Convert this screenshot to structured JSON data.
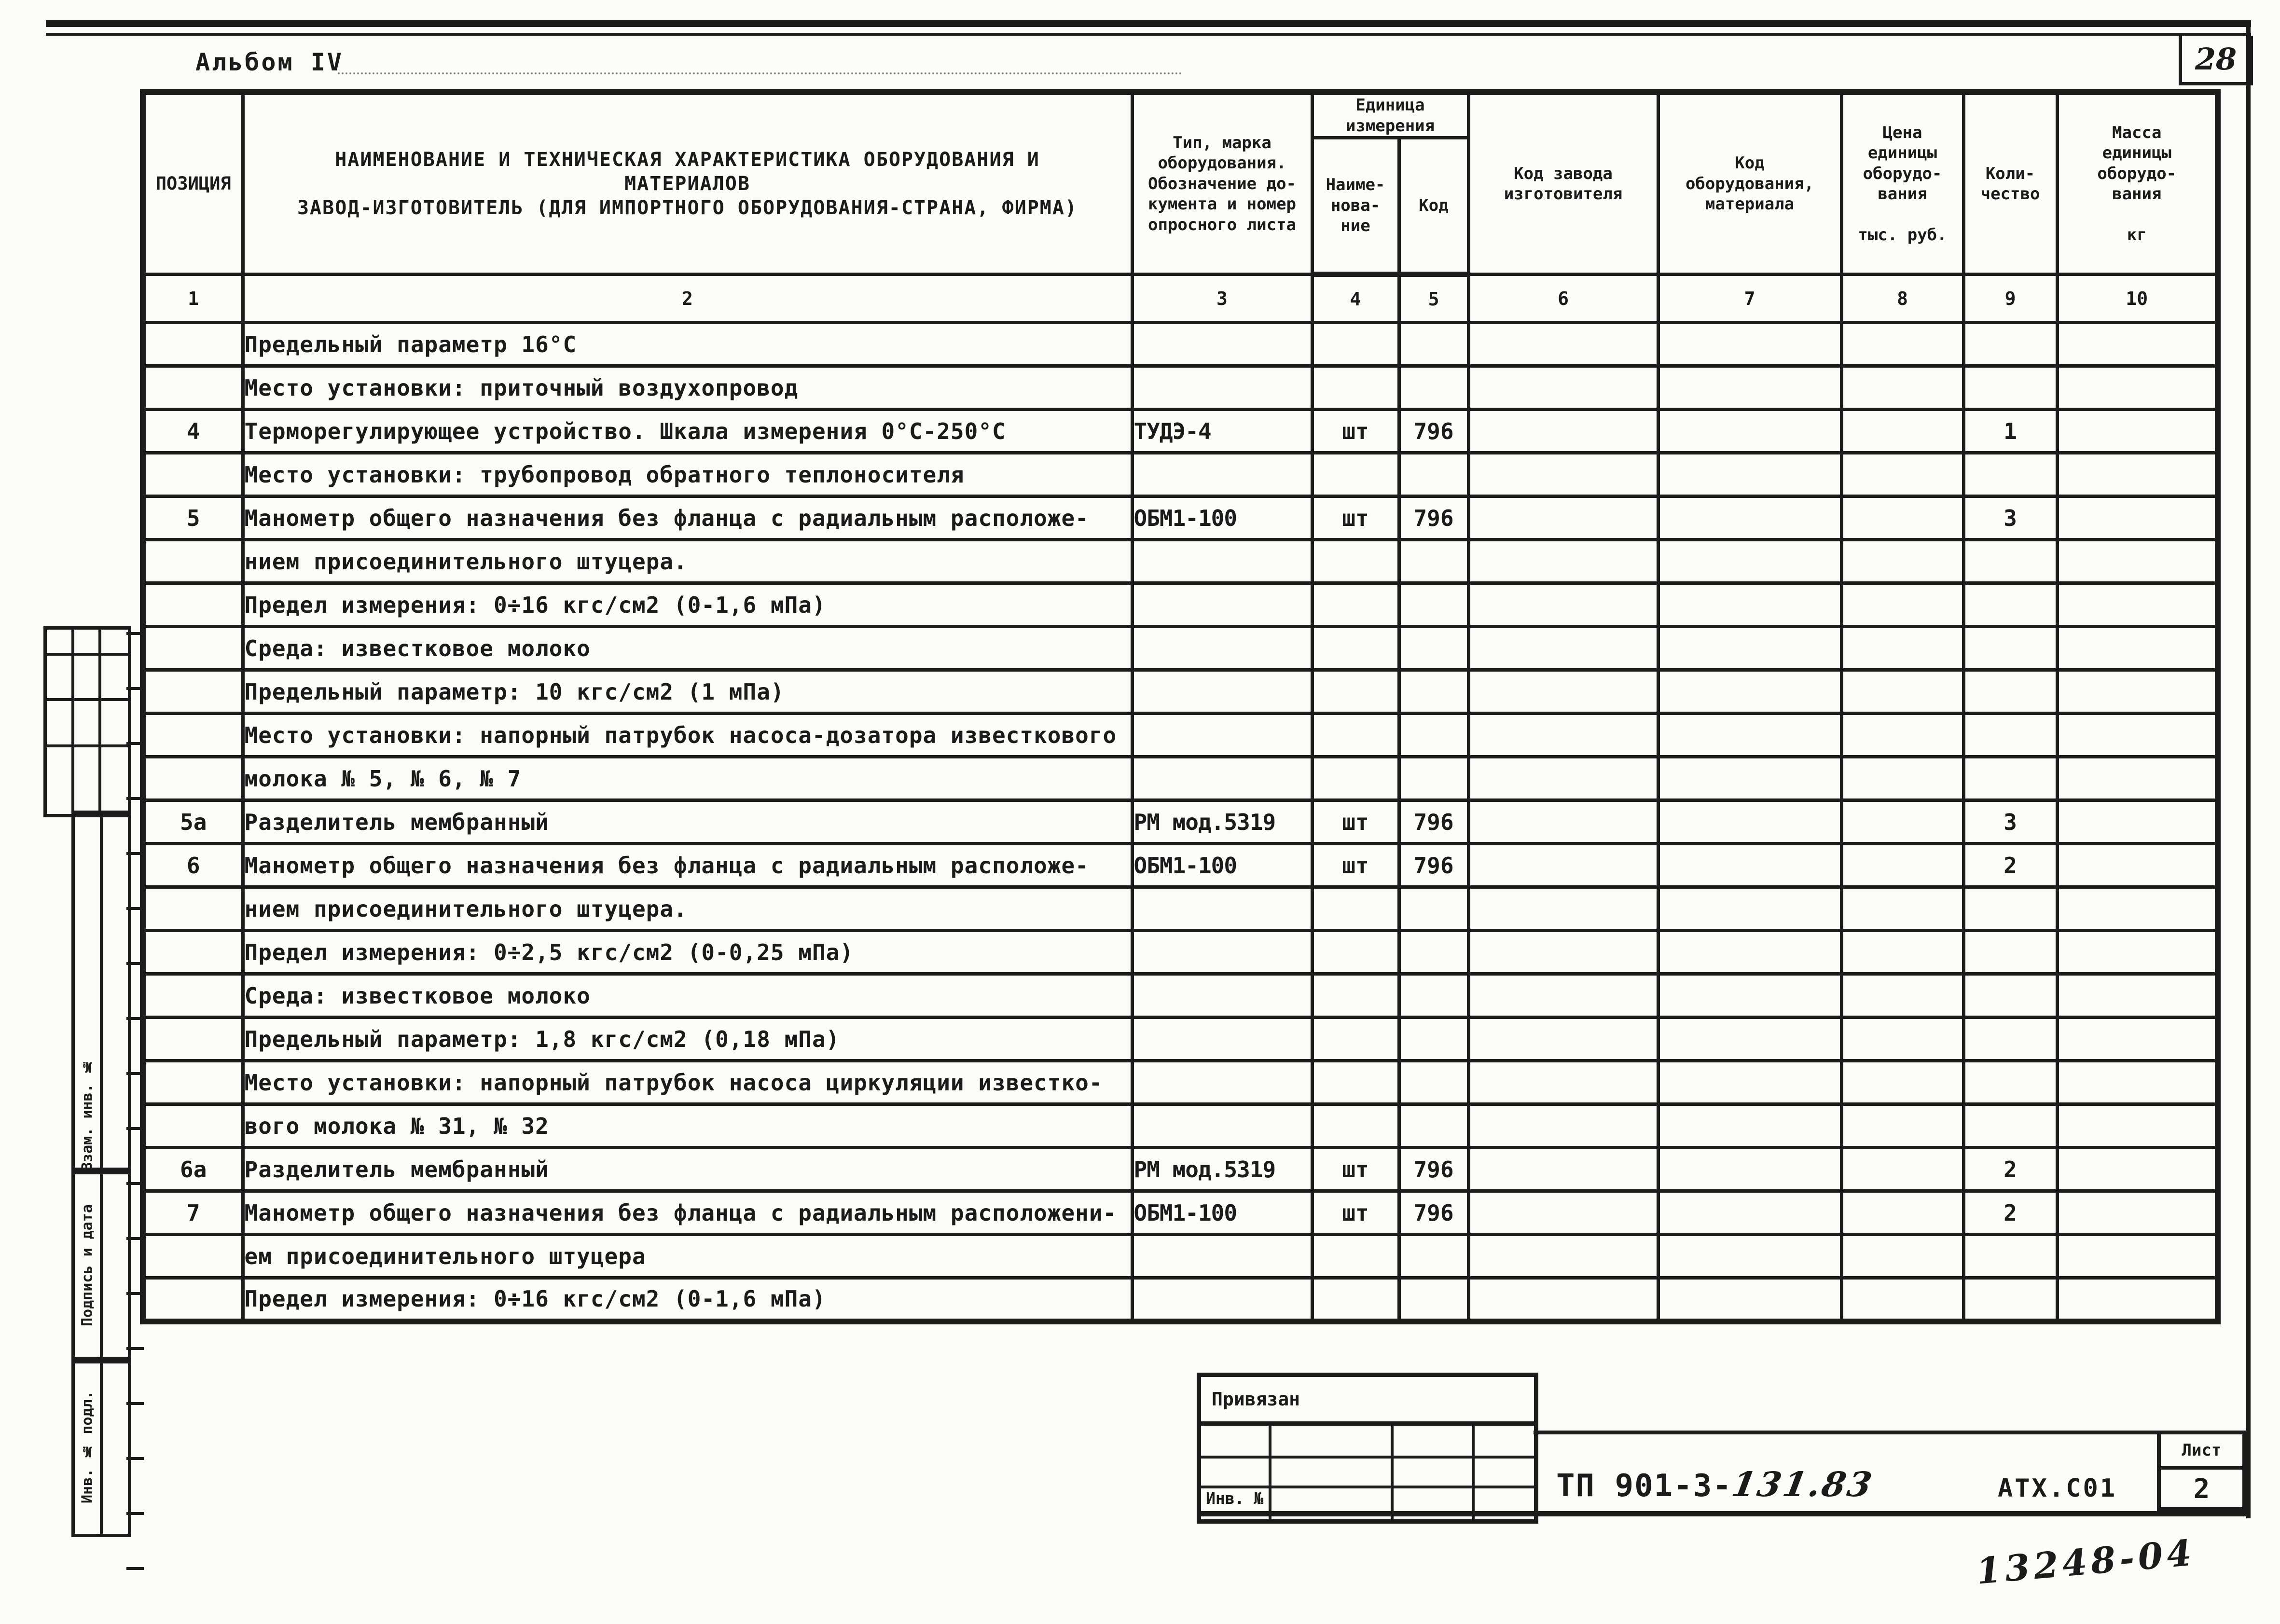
{
  "page": {
    "album_label": "Альбом IV",
    "page_number": "28",
    "handwritten_note": "13248-04"
  },
  "frame": {
    "margin_labels": [
      "Взам. инв. №",
      "Подпись и дата",
      "Инв. № подл."
    ]
  },
  "title_block": {
    "stamp_title": "Привязан",
    "inv_label": "Инв. №",
    "doc_code_typed": "ТП 901-3-",
    "doc_code_hand": "131.83",
    "org_code": "АТХ.С01",
    "sheet_label": "Лист",
    "sheet_number": "2"
  },
  "table": {
    "headers": {
      "position": "ПОЗИЦИЯ",
      "name": "НАИМЕНОВАНИЕ И ТЕХНИЧЕСКАЯ ХАРАКТЕРИСТИКА ОБОРУДОВАНИЯ И\nМАТЕРИАЛОВ\nЗАВОД-ИЗГОТОВИТЕЛЬ (ДЛЯ ИМПОРТНОГО ОБОРУДОВАНИЯ-СТРАНА, ФИРМА)",
      "type": "Тип, марка\nоборудования.\nОбозначение до-\nкумента и номер\nопросного листа",
      "unit_group": "Единица\nизмерения",
      "unit_name": "Наиме-\nнова-\nние",
      "unit_code": "Код",
      "factory_code": "Код завода\nизготовителя",
      "equipment_code": "Код\nоборудования,\nматериала",
      "price": "Цена\nединицы\nоборудо-\nвания\n\nтыс. руб.",
      "quantity": "Коли-\nчество",
      "mass": "Масса\nединицы\nоборудо-\nвания\n\nкг"
    },
    "column_numbers": [
      "1",
      "2",
      "3",
      "4",
      "5",
      "6",
      "7",
      "8",
      "9",
      "10"
    ],
    "rows": [
      {
        "pos": "",
        "name": "Предельный параметр 16°С",
        "type": "",
        "unit": "",
        "code": "",
        "qty": ""
      },
      {
        "pos": "",
        "name": "Место установки: приточный воздухопровод",
        "type": "",
        "unit": "",
        "code": "",
        "qty": ""
      },
      {
        "pos": "4",
        "name": "Терморегулирующее устройство. Шкала измерения 0°С-250°С",
        "type": "ТУДЭ-4",
        "unit": "шт",
        "code": "796",
        "qty": "1"
      },
      {
        "pos": "",
        "name": "Место установки: трубопровод обратного теплоносителя",
        "type": "",
        "unit": "",
        "code": "",
        "qty": ""
      },
      {
        "pos": "5",
        "name": "Манометр общего назначения без фланца с радиальным расположе-",
        "type": "ОБМ1-100",
        "unit": "шт",
        "code": "796",
        "qty": "3"
      },
      {
        "pos": "",
        "name": "нием присоединительного штуцера.",
        "type": "",
        "unit": "",
        "code": "",
        "qty": ""
      },
      {
        "pos": "",
        "name": "Предел измерения: 0÷16 кгс/см2 (0-1,6 мПа)",
        "type": "",
        "unit": "",
        "code": "",
        "qty": ""
      },
      {
        "pos": "",
        "name": "Среда: известковое молоко",
        "type": "",
        "unit": "",
        "code": "",
        "qty": ""
      },
      {
        "pos": "",
        "name": "Предельный параметр: 10 кгс/см2 (1 мПа)",
        "type": "",
        "unit": "",
        "code": "",
        "qty": ""
      },
      {
        "pos": "",
        "name": "Место установки: напорный патрубок насоса-дозатора известкового",
        "type": "",
        "unit": "",
        "code": "",
        "qty": ""
      },
      {
        "pos": "",
        "name": "молока № 5, № 6, № 7",
        "type": "",
        "unit": "",
        "code": "",
        "qty": ""
      },
      {
        "pos": "5а",
        "name": "Разделитель мембранный",
        "type": "РМ мод.5319",
        "unit": "шт",
        "code": "796",
        "qty": "3"
      },
      {
        "pos": "6",
        "name": "Манометр общего назначения без фланца с радиальным расположе-",
        "type": "ОБМ1-100",
        "unit": "шт",
        "code": "796",
        "qty": "2"
      },
      {
        "pos": "",
        "name": "нием присоединительного штуцера.",
        "type": "",
        "unit": "",
        "code": "",
        "qty": ""
      },
      {
        "pos": "",
        "name": "Предел измерения: 0÷2,5 кгс/см2 (0-0,25 мПа)",
        "type": "",
        "unit": "",
        "code": "",
        "qty": ""
      },
      {
        "pos": "",
        "name": "Среда: известковое молоко",
        "type": "",
        "unit": "",
        "code": "",
        "qty": ""
      },
      {
        "pos": "",
        "name": "Предельный параметр: 1,8 кгс/см2 (0,18 мПа)",
        "type": "",
        "unit": "",
        "code": "",
        "qty": ""
      },
      {
        "pos": "",
        "name": "Место установки: напорный патрубок насоса циркуляции известко-",
        "type": "",
        "unit": "",
        "code": "",
        "qty": ""
      },
      {
        "pos": "",
        "name": "вого молока № 31, № 32",
        "type": "",
        "unit": "",
        "code": "",
        "qty": ""
      },
      {
        "pos": "6а",
        "name": "Разделитель мембранный",
        "type": "РМ мод.5319",
        "unit": "шт",
        "code": "796",
        "qty": "2"
      },
      {
        "pos": "7",
        "name": "Манометр общего назначения без фланца с радиальным расположени-",
        "type": "ОБМ1-100",
        "unit": "шт",
        "code": "796",
        "qty": "2"
      },
      {
        "pos": "",
        "name": "ем присоединительного штуцера",
        "type": "",
        "unit": "",
        "code": "",
        "qty": ""
      },
      {
        "pos": "",
        "name": "Предел измерения: 0÷16 кгс/см2 (0-1,6 мПа)",
        "type": "",
        "unit": "",
        "code": "",
        "qty": ""
      }
    ]
  }
}
